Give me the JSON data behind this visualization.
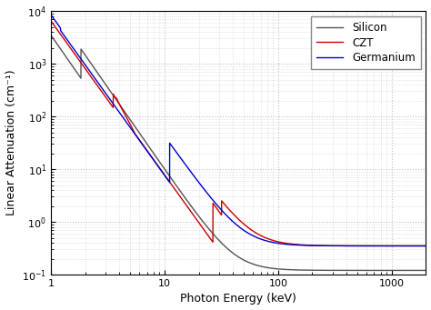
{
  "title": "",
  "xlabel": "Photon Energy (keV)",
  "ylabel": "Linear Attenuation (cm⁻¹)",
  "xlim": [
    1,
    2000
  ],
  "ylim": [
    0.1,
    10000
  ],
  "legend": [
    "Silicon",
    "CZT",
    "Germanium"
  ],
  "si_color": "#555555",
  "czt_color": "#cc0000",
  "ge_color": "#0000cc",
  "background_color": "#ffffff",
  "grid_color": "#bbbbbb"
}
